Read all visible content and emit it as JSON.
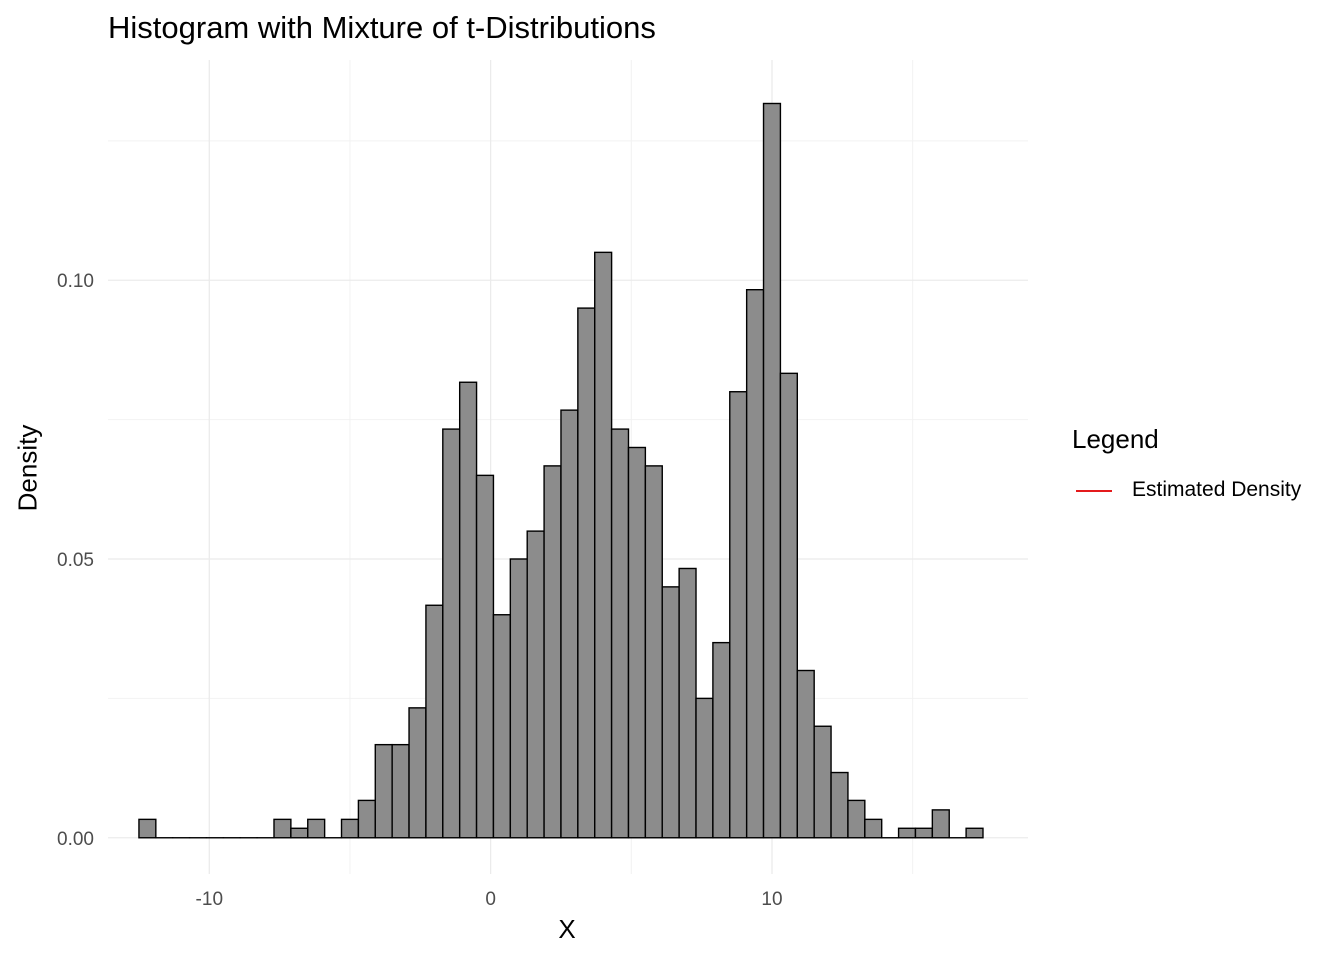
{
  "chart_data": {
    "type": "bar",
    "title": "Histogram with Mixture of t-Distributions",
    "xlabel": "X",
    "ylabel": "Density",
    "xlim": [
      -13.6,
      19.1
    ],
    "ylim": [
      -0.0065,
      0.1395
    ],
    "x_ticks": [
      -10,
      0,
      10
    ],
    "x_tick_labels": [
      "-10",
      "0",
      "10"
    ],
    "y_ticks": [
      0.0,
      0.05,
      0.1
    ],
    "y_tick_labels": [
      "0.00",
      "0.05",
      "0.10"
    ],
    "grid": true,
    "bin_width": 0.6,
    "bins": [
      {
        "x0": -12.5,
        "x1": -11.9,
        "density": 0.0033
      },
      {
        "x0": -11.9,
        "x1": -11.3,
        "density": 0.0
      },
      {
        "x0": -11.3,
        "x1": -10.7,
        "density": 0.0
      },
      {
        "x0": -10.7,
        "x1": -10.1,
        "density": 0.0
      },
      {
        "x0": -10.1,
        "x1": -9.5,
        "density": 0.0
      },
      {
        "x0": -9.5,
        "x1": -8.9,
        "density": 0.0
      },
      {
        "x0": -8.9,
        "x1": -8.3,
        "density": 0.0
      },
      {
        "x0": -8.3,
        "x1": -7.7,
        "density": 0.0
      },
      {
        "x0": -7.7,
        "x1": -7.1,
        "density": 0.0033
      },
      {
        "x0": -7.1,
        "x1": -6.5,
        "density": 0.0017
      },
      {
        "x0": -6.5,
        "x1": -5.9,
        "density": 0.0033
      },
      {
        "x0": -5.9,
        "x1": -5.3,
        "density": 0.0
      },
      {
        "x0": -5.3,
        "x1": -4.7,
        "density": 0.0033
      },
      {
        "x0": -4.7,
        "x1": -4.1,
        "density": 0.0067
      },
      {
        "x0": -4.1,
        "x1": -3.5,
        "density": 0.0167
      },
      {
        "x0": -3.5,
        "x1": -2.9,
        "density": 0.0167
      },
      {
        "x0": -2.9,
        "x1": -2.3,
        "density": 0.0233
      },
      {
        "x0": -2.3,
        "x1": -1.7,
        "density": 0.0417
      },
      {
        "x0": -1.7,
        "x1": -1.1,
        "density": 0.0733
      },
      {
        "x0": -1.1,
        "x1": -0.5,
        "density": 0.0817
      },
      {
        "x0": -0.5,
        "x1": 0.1,
        "density": 0.065
      },
      {
        "x0": 0.1,
        "x1": 0.7,
        "density": 0.04
      },
      {
        "x0": 0.7,
        "x1": 1.3,
        "density": 0.05
      },
      {
        "x0": 1.3,
        "x1": 1.9,
        "density": 0.055
      },
      {
        "x0": 1.9,
        "x1": 2.5,
        "density": 0.0667
      },
      {
        "x0": 2.5,
        "x1": 3.1,
        "density": 0.0767
      },
      {
        "x0": 3.1,
        "x1": 3.7,
        "density": 0.095
      },
      {
        "x0": 3.7,
        "x1": 4.3,
        "density": 0.105
      },
      {
        "x0": 4.3,
        "x1": 4.9,
        "density": 0.0733
      },
      {
        "x0": 4.9,
        "x1": 5.5,
        "density": 0.07
      },
      {
        "x0": 5.5,
        "x1": 6.1,
        "density": 0.0667
      },
      {
        "x0": 6.1,
        "x1": 6.7,
        "density": 0.045
      },
      {
        "x0": 6.7,
        "x1": 7.3,
        "density": 0.0483
      },
      {
        "x0": 7.3,
        "x1": 7.9,
        "density": 0.025
      },
      {
        "x0": 7.9,
        "x1": 8.5,
        "density": 0.035
      },
      {
        "x0": 8.5,
        "x1": 9.1,
        "density": 0.08
      },
      {
        "x0": 9.1,
        "x1": 9.7,
        "density": 0.0983
      },
      {
        "x0": 9.7,
        "x1": 10.3,
        "density": 0.1317
      },
      {
        "x0": 10.3,
        "x1": 10.9,
        "density": 0.0833
      },
      {
        "x0": 10.9,
        "x1": 11.5,
        "density": 0.03
      },
      {
        "x0": 11.5,
        "x1": 12.1,
        "density": 0.02
      },
      {
        "x0": 12.1,
        "x1": 12.7,
        "density": 0.0117
      },
      {
        "x0": 12.7,
        "x1": 13.3,
        "density": 0.0067
      },
      {
        "x0": 13.3,
        "x1": 13.9,
        "density": 0.0033
      },
      {
        "x0": 13.9,
        "x1": 14.5,
        "density": 0.0
      },
      {
        "x0": 14.5,
        "x1": 15.1,
        "density": 0.0017
      },
      {
        "x0": 15.1,
        "x1": 15.7,
        "density": 0.0017
      },
      {
        "x0": 15.7,
        "x1": 16.3,
        "density": 0.005
      },
      {
        "x0": 16.3,
        "x1": 16.9,
        "density": 0.0
      },
      {
        "x0": 16.9,
        "x1": 17.5,
        "density": 0.0017
      }
    ],
    "bar_fill": "#8c8c8c",
    "bar_stroke": "#000000",
    "legend": {
      "title": "Legend",
      "placement": "right",
      "entries": [
        {
          "label": "Estimated Density",
          "color": "#e41a1c"
        }
      ]
    }
  }
}
